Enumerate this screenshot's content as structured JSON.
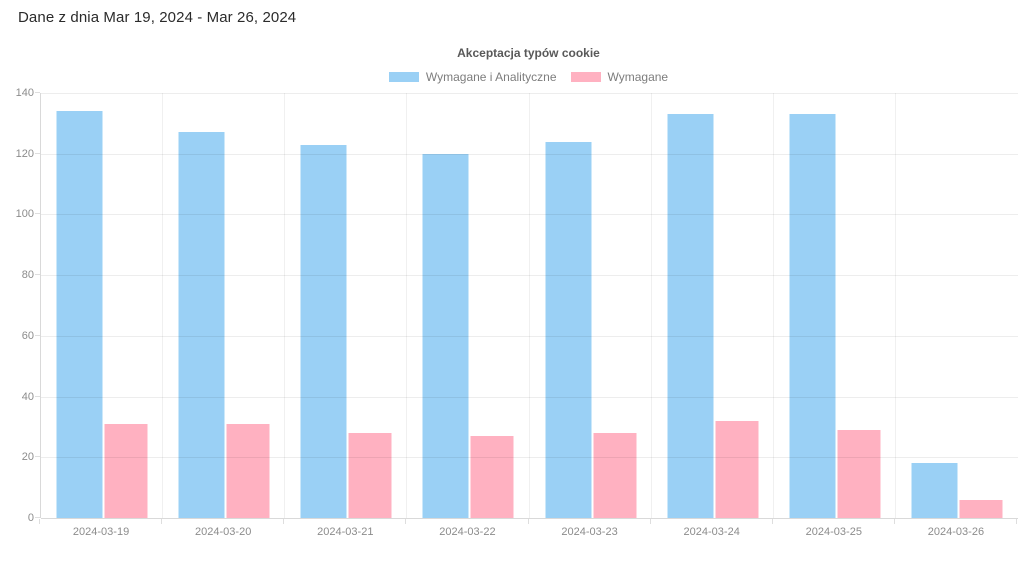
{
  "page": {
    "header": "Dane z dnia Mar 19, 2024 - Mar 26, 2024"
  },
  "chart_data": {
    "type": "bar",
    "title": "Akceptacja typów cookie",
    "categories": [
      "2024-03-19",
      "2024-03-20",
      "2024-03-21",
      "2024-03-22",
      "2024-03-23",
      "2024-03-24",
      "2024-03-25",
      "2024-03-26"
    ],
    "series": [
      {
        "name": "Wymagane i Analityczne",
        "color": "#9ad0f5",
        "values": [
          134,
          127,
          123,
          120,
          124,
          133,
          133,
          18
        ]
      },
      {
        "name": "Wymagane",
        "color": "#ffb1c1",
        "values": [
          31,
          31,
          28,
          27,
          28,
          32,
          29,
          6
        ]
      }
    ],
    "xlabel": "",
    "ylabel": "",
    "ylim": [
      0,
      140
    ],
    "ytick_step": 20,
    "ytick_labels": [
      "0",
      "20",
      "40",
      "60",
      "80",
      "100",
      "120",
      "140"
    ],
    "grid": true,
    "legend_position": "top"
  }
}
